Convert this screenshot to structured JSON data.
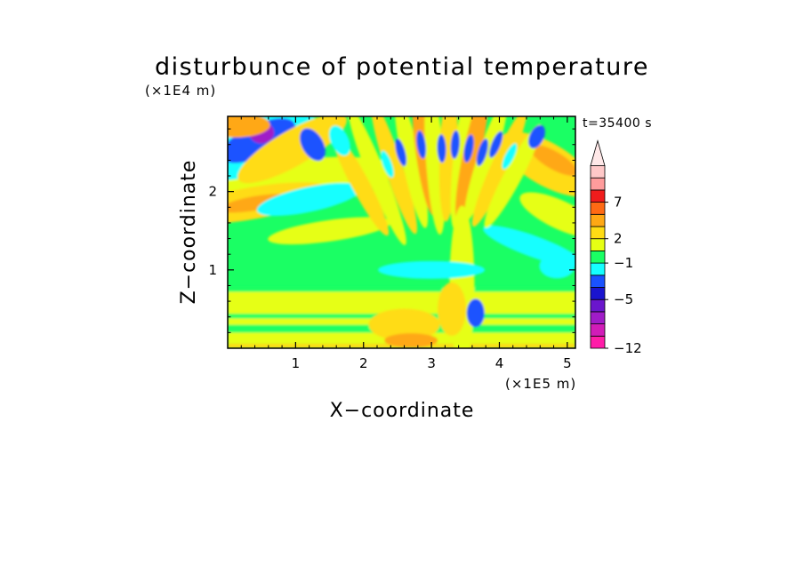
{
  "chart_data": {
    "type": "heatmap",
    "title": "disturbunce of potential temperature",
    "xlabel": "X−coordinate",
    "ylabel": "Z−coordinate",
    "x_unit": "(×1E5 m)",
    "y_unit": "(×1E4 m)",
    "time_label": "t=35400 s",
    "xlim": [
      0,
      5.12
    ],
    "ylim": [
      0,
      2.96
    ],
    "x_ticks": [
      1,
      2,
      3,
      4,
      5
    ],
    "x_tick_labels": [
      "1",
      "2",
      "3",
      "4",
      "5"
    ],
    "y_ticks": [
      1,
      2
    ],
    "y_tick_labels": [
      "1",
      "2"
    ],
    "grid": false,
    "colorbar": {
      "placement": "right",
      "extend": "max",
      "levels": [
        -12,
        -5,
        -1,
        2,
        7
      ],
      "level_labels": [
        "−12",
        "−5",
        "−1",
        "2",
        "7"
      ],
      "colors": [
        "#ff1ca8",
        "#d11cb8",
        "#a01cc8",
        "#6a16cc",
        "#1a14cf",
        "#1a52ff",
        "#15ffff",
        "#1aff64",
        "#e6ff14",
        "#ffdc14",
        "#ffa814",
        "#ff6a14",
        "#f01c1c",
        "#ff9c9c",
        "#ffc8c8"
      ]
    },
    "fill_colors": {
      "background": "#1aff64",
      "near_zero": "#1aff64",
      "slightly_warm": "#e6ff14",
      "warm": "#ffdc14",
      "warmer": "#ffa814",
      "hot": "#ff6a14",
      "slightly_cool": "#15ffff",
      "cool": "#1a52ff",
      "cold": "#1a14cf",
      "coldest": "#a01cc8"
    }
  }
}
